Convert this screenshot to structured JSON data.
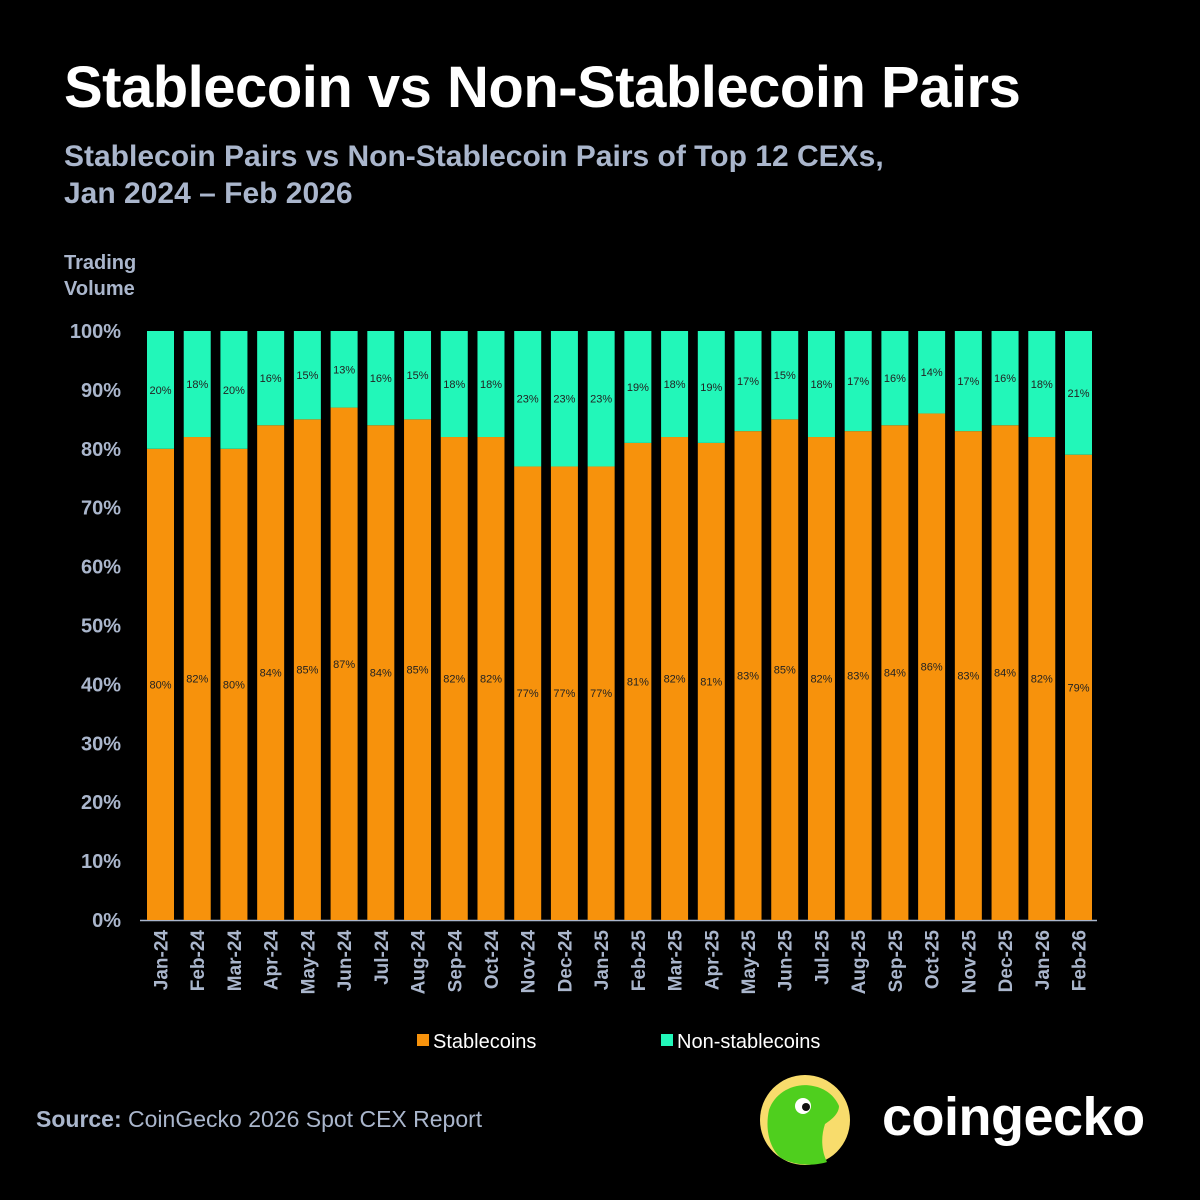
{
  "header": {
    "title": "Stablecoin vs Non-Stablecoin Pairs",
    "subtitle_line1": "Stablecoin Pairs vs Non-Stablecoin Pairs of Top 12 CEXs,",
    "subtitle_line2": "Jan 2024 – Feb 2026"
  },
  "chart_data": {
    "type": "bar",
    "stacked": true,
    "ylabel": "Trading Volume",
    "ylim": [
      0,
      100
    ],
    "yticks": [
      "0%",
      "10%",
      "20%",
      "30%",
      "40%",
      "50%",
      "60%",
      "70%",
      "80%",
      "90%",
      "100%"
    ],
    "grid": false,
    "legend_position": "bottom",
    "categories": [
      "Jan-24",
      "Feb-24",
      "Mar-24",
      "Apr-24",
      "May-24",
      "Jun-24",
      "Jul-24",
      "Aug-24",
      "Sep-24",
      "Oct-24",
      "Nov-24",
      "Dec-24",
      "Jan-25",
      "Feb-25",
      "Mar-25",
      "Apr-25",
      "May-25",
      "Jun-25",
      "Jul-25",
      "Aug-25",
      "Sep-25",
      "Oct-25",
      "Nov-25",
      "Dec-25",
      "Jan-26",
      "Feb-26"
    ],
    "series": [
      {
        "name": "Stablecoins",
        "color": "#F7920C",
        "values": [
          80,
          82,
          80,
          84,
          85,
          87,
          84,
          85,
          82,
          82,
          77,
          77,
          77,
          81,
          82,
          81,
          83,
          85,
          82,
          83,
          84,
          86,
          83,
          84,
          82,
          79
        ]
      },
      {
        "name": "Non-stablecoins",
        "color": "#22F7B9",
        "values": [
          20,
          18,
          20,
          16,
          15,
          13,
          16,
          15,
          18,
          18,
          23,
          23,
          23,
          19,
          18,
          19,
          17,
          15,
          18,
          17,
          16,
          14,
          17,
          16,
          18,
          21
        ]
      }
    ]
  },
  "footer": {
    "source_label": "Source:",
    "source_text": " CoinGecko 2026 Spot CEX Report",
    "logo_text": "coingecko"
  }
}
